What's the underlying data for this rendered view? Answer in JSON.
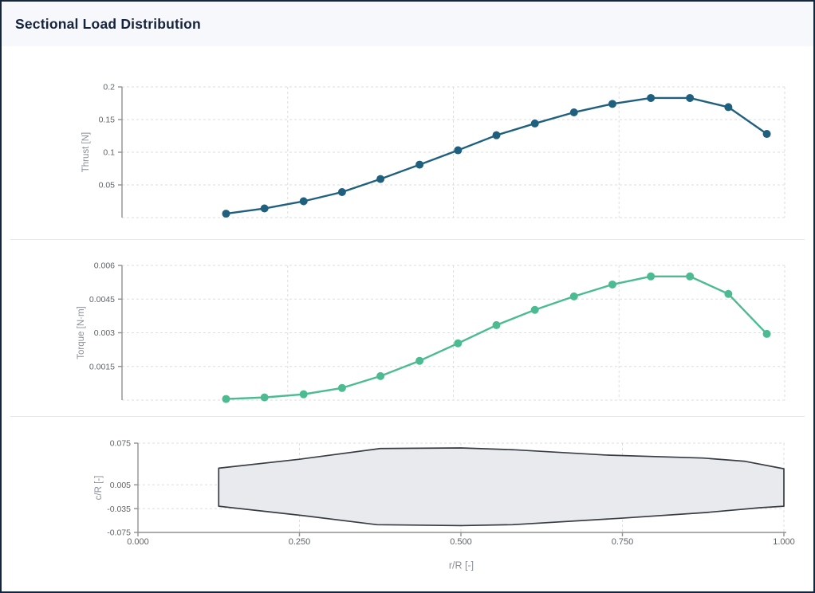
{
  "header": {
    "title": "Sectional Load Distribution"
  },
  "colors": {
    "thrust_line": "#20607f",
    "torque_line": "#4cbb92",
    "blade_fill": "#e8eaee",
    "blade_stroke": "#383d44",
    "grid": "#dedede",
    "axis": "#909090",
    "tick_text": "#5f6368",
    "axis_title_text": "#8a8f98",
    "header_bg": "#f6f8fb",
    "title_text": "#16233c"
  },
  "chart_data": [
    {
      "type": "line",
      "id": "thrust",
      "ylabel": "Thrust [N]",
      "xlim": [
        0,
        1
      ],
      "ylim": [
        0,
        0.2
      ],
      "grid": true,
      "legend": "none",
      "marker": "circle",
      "x": [
        0.157,
        0.215,
        0.274,
        0.332,
        0.39,
        0.449,
        0.507,
        0.565,
        0.623,
        0.682,
        0.74,
        0.798,
        0.857,
        0.915,
        0.973
      ],
      "series": [
        {
          "name": "thrust",
          "values": [
            0.006,
            0.014,
            0.025,
            0.039,
            0.059,
            0.081,
            0.103,
            0.126,
            0.144,
            0.161,
            0.174,
            0.183,
            0.183,
            0.169,
            0.128
          ]
        }
      ],
      "yticks": [
        {
          "v": 0.05,
          "label": "0.05"
        },
        {
          "v": 0.1,
          "label": "0.1"
        },
        {
          "v": 0.15,
          "label": "0.15"
        },
        {
          "v": 0.2,
          "label": "0.2"
        }
      ],
      "ygrid_extra": [
        0
      ],
      "xgrid": [
        0.25,
        0.5,
        0.75,
        1.0
      ]
    },
    {
      "type": "line",
      "id": "torque",
      "ylabel": "Torque [N·m]",
      "xlim": [
        0,
        1
      ],
      "ylim": [
        0,
        0.006
      ],
      "grid": true,
      "legend": "none",
      "marker": "circle",
      "x": [
        0.157,
        0.215,
        0.274,
        0.332,
        0.39,
        0.449,
        0.507,
        0.565,
        0.623,
        0.682,
        0.74,
        0.798,
        0.857,
        0.915,
        0.973
      ],
      "series": [
        {
          "name": "torque",
          "values": [
            5e-05,
            0.00012,
            0.00026,
            0.00054,
            0.00107,
            0.00175,
            0.00253,
            0.00334,
            0.00402,
            0.00462,
            0.00515,
            0.00551,
            0.00551,
            0.00473,
            0.00295
          ]
        }
      ],
      "yticks": [
        {
          "v": 0.0015,
          "label": "0.0015"
        },
        {
          "v": 0.003,
          "label": "0.003"
        },
        {
          "v": 0.0045,
          "label": "0.0045"
        },
        {
          "v": 0.006,
          "label": "0.006"
        }
      ],
      "ygrid_extra": [
        0
      ],
      "xgrid": [
        0.25,
        0.5,
        0.75,
        1.0
      ]
    },
    {
      "type": "area",
      "id": "blade-geometry",
      "ylabel": "c/R [-]",
      "xlabel": "r/R [-]",
      "xlim": [
        0,
        1
      ],
      "ylim": [
        -0.075,
        0.075
      ],
      "grid": true,
      "legend": "none",
      "yticks": [
        {
          "v": -0.075,
          "label": "-0.075"
        },
        {
          "v": -0.035,
          "label": "-0.035"
        },
        {
          "v": 0.005,
          "label": "0.005"
        },
        {
          "v": 0.075,
          "label": "0.075"
        }
      ],
      "xticks": [
        {
          "v": 0.0,
          "label": "0.000"
        },
        {
          "v": 0.25,
          "label": "0.250"
        },
        {
          "v": 0.5,
          "label": "0.500"
        },
        {
          "v": 0.75,
          "label": "0.750"
        },
        {
          "v": 1.0,
          "label": "1.000"
        }
      ],
      "xgrid": [
        0.25,
        0.5,
        0.75,
        1.0
      ],
      "outline_upper": [
        [
          0.125,
          0.033
        ],
        [
          0.25,
          0.048
        ],
        [
          0.375,
          0.066
        ],
        [
          0.5,
          0.067
        ],
        [
          0.58,
          0.064
        ],
        [
          0.725,
          0.055
        ],
        [
          0.875,
          0.05
        ],
        [
          0.94,
          0.0445
        ],
        [
          1.0,
          0.032
        ]
      ],
      "outline_lower": [
        [
          0.125,
          -0.031
        ],
        [
          0.25,
          -0.046
        ],
        [
          0.37,
          -0.062
        ],
        [
          0.5,
          -0.0635
        ],
        [
          0.58,
          -0.062
        ],
        [
          0.75,
          -0.051
        ],
        [
          0.88,
          -0.0415
        ],
        [
          0.963,
          -0.0335
        ],
        [
          1.0,
          -0.031
        ]
      ]
    }
  ]
}
